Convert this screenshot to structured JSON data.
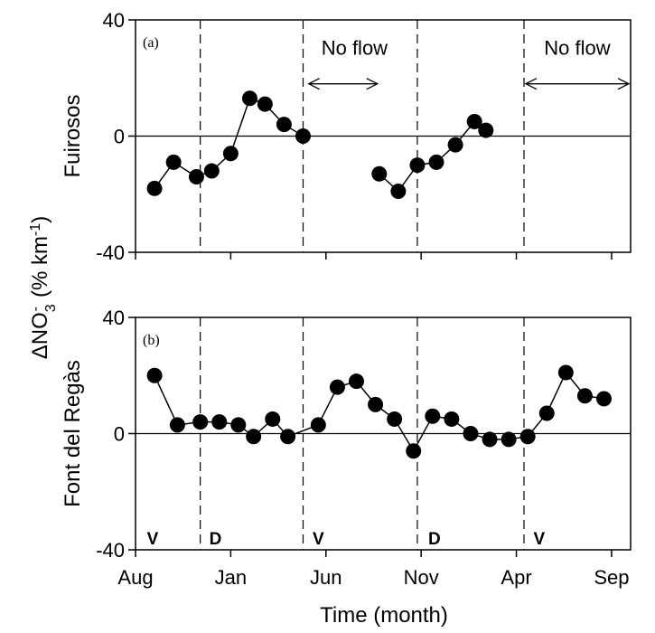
{
  "chart_data": [
    {
      "type": "line",
      "panel_label": "(a)",
      "ylabel": "Fuirosos",
      "ylim": [
        -40,
        40
      ],
      "yticks": [
        -40,
        0,
        40
      ],
      "xlim": [
        0,
        13
      ],
      "xticks": [
        0,
        2.5,
        5,
        7.5,
        10,
        12.5
      ],
      "xticklabels": [
        "Aug",
        "Jan",
        "Jun",
        "Nov",
        "Apr",
        "Sep"
      ],
      "dashed_lines_x": [
        1.7,
        4.4,
        7.4,
        10.2
      ],
      "zero_line": true,
      "series": [
        {
          "segments": [
            [
              [
                0.5,
                -18
              ],
              [
                1.0,
                -9
              ],
              [
                1.6,
                -14
              ],
              [
                2.0,
                -12
              ],
              [
                2.5,
                -6
              ],
              [
                3.0,
                13
              ],
              [
                3.4,
                11
              ],
              [
                3.9,
                4
              ],
              [
                4.4,
                0
              ]
            ],
            [
              [
                6.4,
                -13
              ],
              [
                6.9,
                -19
              ],
              [
                7.4,
                -10
              ],
              [
                7.9,
                -9
              ],
              [
                8.4,
                -3
              ],
              [
                8.9,
                5
              ],
              [
                9.2,
                2
              ]
            ]
          ]
        }
      ],
      "annotations": [
        {
          "text": "No flow",
          "x": 5.75,
          "y": 28,
          "arrow_from": 4.5,
          "arrow_to": 6.4,
          "arrow_y": 18
        },
        {
          "text": "No flow",
          "x": 11.6,
          "y": 28,
          "arrow_from": 10.2,
          "arrow_to": 13,
          "arrow_y": 18
        }
      ],
      "phase_labels": []
    },
    {
      "type": "line",
      "panel_label": "(b)",
      "ylabel": "Font del Regàs",
      "ylim": [
        -40,
        40
      ],
      "yticks": [
        -40,
        0,
        40
      ],
      "xlim": [
        0,
        13
      ],
      "xticks": [
        0,
        2.5,
        5,
        7.5,
        10,
        12.5
      ],
      "xticklabels": [
        "Aug",
        "Jan",
        "Jun",
        "Nov",
        "Apr",
        "Sep"
      ],
      "dashed_lines_x": [
        1.7,
        4.4,
        7.4,
        10.2
      ],
      "zero_line": true,
      "series": [
        {
          "segments": [
            [
              [
                0.5,
                20
              ],
              [
                1.1,
                3
              ],
              [
                1.7,
                4
              ],
              [
                2.2,
                4
              ],
              [
                2.7,
                3
              ],
              [
                3.1,
                -1
              ],
              [
                3.6,
                5
              ],
              [
                4.0,
                -1
              ],
              [
                4.8,
                3
              ],
              [
                5.3,
                16
              ],
              [
                5.8,
                18
              ],
              [
                6.3,
                10
              ],
              [
                6.8,
                5
              ],
              [
                7.3,
                -6
              ],
              [
                7.8,
                6
              ],
              [
                8.3,
                5
              ],
              [
                8.8,
                0
              ],
              [
                9.3,
                -2
              ],
              [
                9.8,
                -2
              ],
              [
                10.3,
                -1
              ],
              [
                10.8,
                7
              ],
              [
                11.3,
                21
              ],
              [
                11.8,
                13
              ],
              [
                12.3,
                12
              ]
            ]
          ]
        }
      ],
      "annotations": [],
      "phase_labels": [
        {
          "text": "V",
          "x": 0.45
        },
        {
          "text": "D",
          "x": 2.1
        },
        {
          "text": "V",
          "x": 4.8
        },
        {
          "text": "D",
          "x": 7.85
        },
        {
          "text": "V",
          "x": 10.6
        }
      ]
    }
  ],
  "shared_ylabel_main": "ΔNO",
  "shared_ylabel_sub": "3",
  "shared_ylabel_sup": "-",
  "shared_ylabel_unit": "(% km",
  "shared_ylabel_unit_sup": "-1",
  "shared_ylabel_close": ")",
  "xlabel": "Time (month)"
}
